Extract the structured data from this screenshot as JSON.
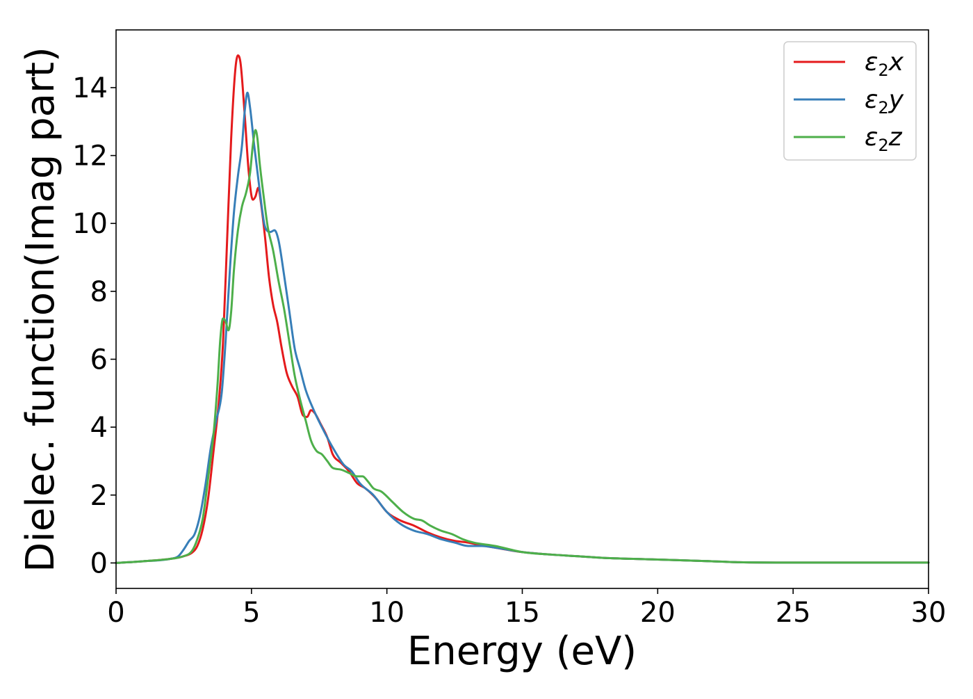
{
  "chart_data": {
    "type": "line",
    "title": "",
    "xlabel": "Energy (eV)",
    "ylabel": "Dielec. function(Imag part)",
    "xlim": [
      0,
      30
    ],
    "ylim": [
      -0.75,
      15.7
    ],
    "xticks": [
      0,
      5,
      10,
      15,
      20,
      25,
      30
    ],
    "yticks": [
      0,
      2,
      4,
      6,
      8,
      10,
      12,
      14
    ],
    "xtick_labels": [
      "0",
      "5",
      "10",
      "15",
      "20",
      "25",
      "30"
    ],
    "ytick_labels": [
      "0",
      "2",
      "4",
      "6",
      "8",
      "10",
      "12",
      "14"
    ],
    "grid": false,
    "legend_position": "top-right",
    "series": [
      {
        "name": "ε2x",
        "legend": {
          "base": "ε",
          "sub": "2",
          "tail": "x"
        },
        "color": "#e41a1c",
        "x": [
          0,
          1,
          2,
          2.5,
          2.8,
          3.0,
          3.2,
          3.4,
          3.6,
          3.8,
          3.95,
          4.1,
          4.25,
          4.4,
          4.5,
          4.6,
          4.75,
          4.9,
          5.05,
          5.15,
          5.25,
          5.35,
          5.5,
          5.65,
          5.8,
          5.95,
          6.1,
          6.3,
          6.5,
          6.7,
          6.9,
          7.05,
          7.2,
          7.35,
          7.55,
          7.8,
          8.0,
          8.3,
          8.6,
          8.9,
          9.2,
          9.6,
          10.0,
          10.5,
          11.0,
          11.5,
          12.0,
          12.5,
          13.0,
          13.5,
          14.0,
          15.0,
          16.0,
          17.0,
          18.0,
          20.0,
          22.0,
          23.0,
          25.0,
          30.0
        ],
        "values": [
          0,
          0.05,
          0.12,
          0.2,
          0.3,
          0.5,
          1.0,
          1.9,
          3.3,
          4.8,
          6.5,
          9.5,
          12.5,
          14.5,
          14.95,
          14.7,
          13.2,
          11.5,
          10.7,
          10.8,
          11.05,
          10.6,
          9.6,
          8.4,
          7.6,
          7.1,
          6.4,
          5.6,
          5.2,
          4.9,
          4.35,
          4.3,
          4.5,
          4.4,
          4.1,
          3.7,
          3.2,
          2.95,
          2.7,
          2.35,
          2.2,
          1.9,
          1.5,
          1.25,
          1.1,
          0.9,
          0.75,
          0.65,
          0.6,
          0.52,
          0.45,
          0.32,
          0.25,
          0.2,
          0.15,
          0.1,
          0.05,
          0.02,
          0.01,
          0.01
        ]
      },
      {
        "name": "ε2y",
        "legend": {
          "base": "ε",
          "sub": "2",
          "tail": "y"
        },
        "color": "#377eb8",
        "x": [
          0,
          1,
          2,
          2.3,
          2.5,
          2.7,
          2.9,
          3.1,
          3.3,
          3.5,
          3.7,
          3.9,
          4.05,
          4.2,
          4.35,
          4.5,
          4.65,
          4.75,
          4.85,
          4.95,
          5.1,
          5.3,
          5.5,
          5.7,
          5.85,
          6.0,
          6.2,
          6.4,
          6.6,
          6.8,
          7.0,
          7.3,
          7.6,
          8.0,
          8.4,
          8.7,
          9.0,
          9.5,
          10.0,
          10.5,
          11.0,
          11.5,
          12.0,
          12.5,
          13.0,
          13.5,
          14.0,
          15.0,
          16.0,
          17.0,
          18.0,
          20.0,
          22.0,
          23.0,
          25.0,
          30.0
        ],
        "values": [
          0,
          0.05,
          0.12,
          0.2,
          0.4,
          0.65,
          0.85,
          1.4,
          2.3,
          3.4,
          4.2,
          5.0,
          6.6,
          8.6,
          10.3,
          11.4,
          12.3,
          13.3,
          13.85,
          13.4,
          12.3,
          11.0,
          9.9,
          9.75,
          9.8,
          9.5,
          8.5,
          7.4,
          6.3,
          5.7,
          5.1,
          4.5,
          4.0,
          3.4,
          2.9,
          2.7,
          2.35,
          2.0,
          1.5,
          1.15,
          0.95,
          0.85,
          0.7,
          0.6,
          0.5,
          0.5,
          0.45,
          0.32,
          0.25,
          0.2,
          0.15,
          0.1,
          0.05,
          0.02,
          0.01,
          0.01
        ]
      },
      {
        "name": "ε2z",
        "legend": {
          "base": "ε",
          "sub": "2",
          "tail": "z"
        },
        "color": "#4daf4a",
        "x": [
          0,
          1,
          2,
          2.5,
          2.8,
          3.0,
          3.2,
          3.4,
          3.6,
          3.75,
          3.85,
          3.95,
          4.05,
          4.15,
          4.25,
          4.35,
          4.5,
          4.65,
          4.8,
          4.95,
          5.05,
          5.15,
          5.22,
          5.3,
          5.45,
          5.6,
          5.8,
          6.0,
          6.2,
          6.4,
          6.6,
          6.8,
          7.0,
          7.2,
          7.4,
          7.6,
          7.8,
          8.0,
          8.3,
          8.6,
          8.9,
          9.1,
          9.3,
          9.5,
          9.8,
          10.2,
          10.6,
          11.0,
          11.3,
          11.6,
          12.0,
          12.4,
          12.8,
          13.2,
          14.0,
          15.0,
          16.0,
          17.0,
          18.0,
          20.0,
          22.0,
          23.0,
          25.0,
          30.0
        ],
        "values": [
          0,
          0.05,
          0.12,
          0.2,
          0.35,
          0.7,
          1.3,
          2.5,
          3.8,
          5.3,
          6.6,
          7.2,
          7.1,
          6.85,
          7.4,
          8.6,
          9.8,
          10.5,
          10.9,
          11.5,
          12.3,
          12.75,
          12.5,
          11.8,
          10.8,
          9.9,
          9.2,
          8.3,
          7.5,
          6.5,
          5.5,
          4.8,
          4.2,
          3.6,
          3.3,
          3.2,
          3.0,
          2.8,
          2.75,
          2.65,
          2.55,
          2.55,
          2.4,
          2.2,
          2.1,
          1.8,
          1.5,
          1.3,
          1.25,
          1.1,
          0.95,
          0.85,
          0.7,
          0.6,
          0.5,
          0.32,
          0.25,
          0.2,
          0.15,
          0.1,
          0.05,
          0.02,
          0.01,
          0.01
        ]
      }
    ]
  }
}
